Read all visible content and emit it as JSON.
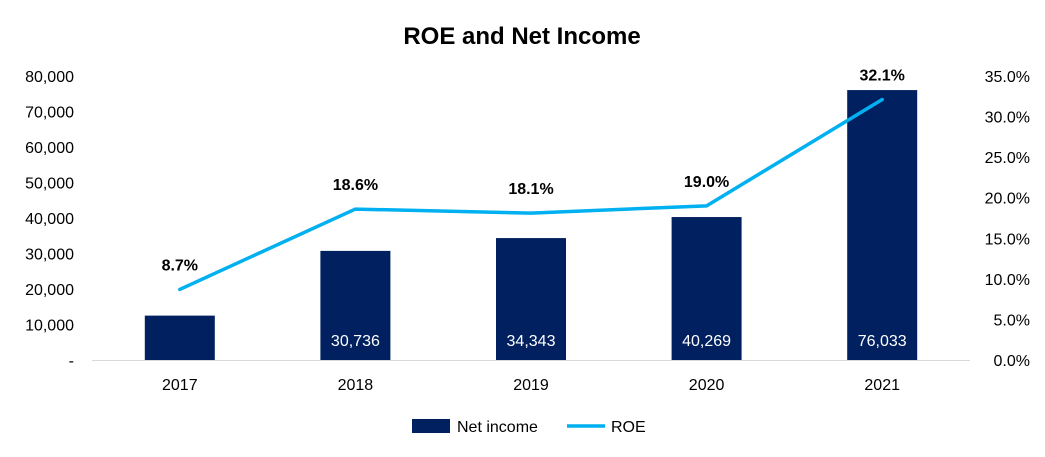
{
  "chart_data": {
    "type": "bar+line",
    "title": "ROE and Net Income",
    "categories": [
      "2017",
      "2018",
      "2019",
      "2020",
      "2021"
    ],
    "series": [
      {
        "name": "Net income",
        "type": "bar",
        "axis": "left",
        "color": "#002060",
        "values": [
          12500,
          30736,
          34343,
          40269,
          76033
        ],
        "data_labels": [
          "",
          "30,736",
          "34,343",
          "40,269",
          "76,033"
        ]
      },
      {
        "name": "ROE",
        "type": "line",
        "axis": "right",
        "color": "#00B0F0",
        "values": [
          8.7,
          18.6,
          18.1,
          19.0,
          32.1
        ],
        "data_labels": [
          "8.7%",
          "18.6%",
          "18.1%",
          "19.0%",
          "32.1%"
        ]
      }
    ],
    "y_left": {
      "ylim": [
        0,
        80000
      ],
      "ticks": [
        0,
        10000,
        20000,
        30000,
        40000,
        50000,
        60000,
        70000,
        80000
      ],
      "tick_labels": [
        "-",
        "10,000",
        "20,000",
        "30,000",
        "40,000",
        "50,000",
        "60,000",
        "70,000",
        "80,000"
      ]
    },
    "y_right": {
      "ylim": [
        0,
        35
      ],
      "ticks": [
        0,
        5,
        10,
        15,
        20,
        25,
        30,
        35
      ],
      "tick_labels": [
        "0.0%",
        "5.0%",
        "10.0%",
        "15.0%",
        "20.0%",
        "25.0%",
        "30.0%",
        "35.0%"
      ]
    },
    "grid": false,
    "legend": "bottom"
  }
}
